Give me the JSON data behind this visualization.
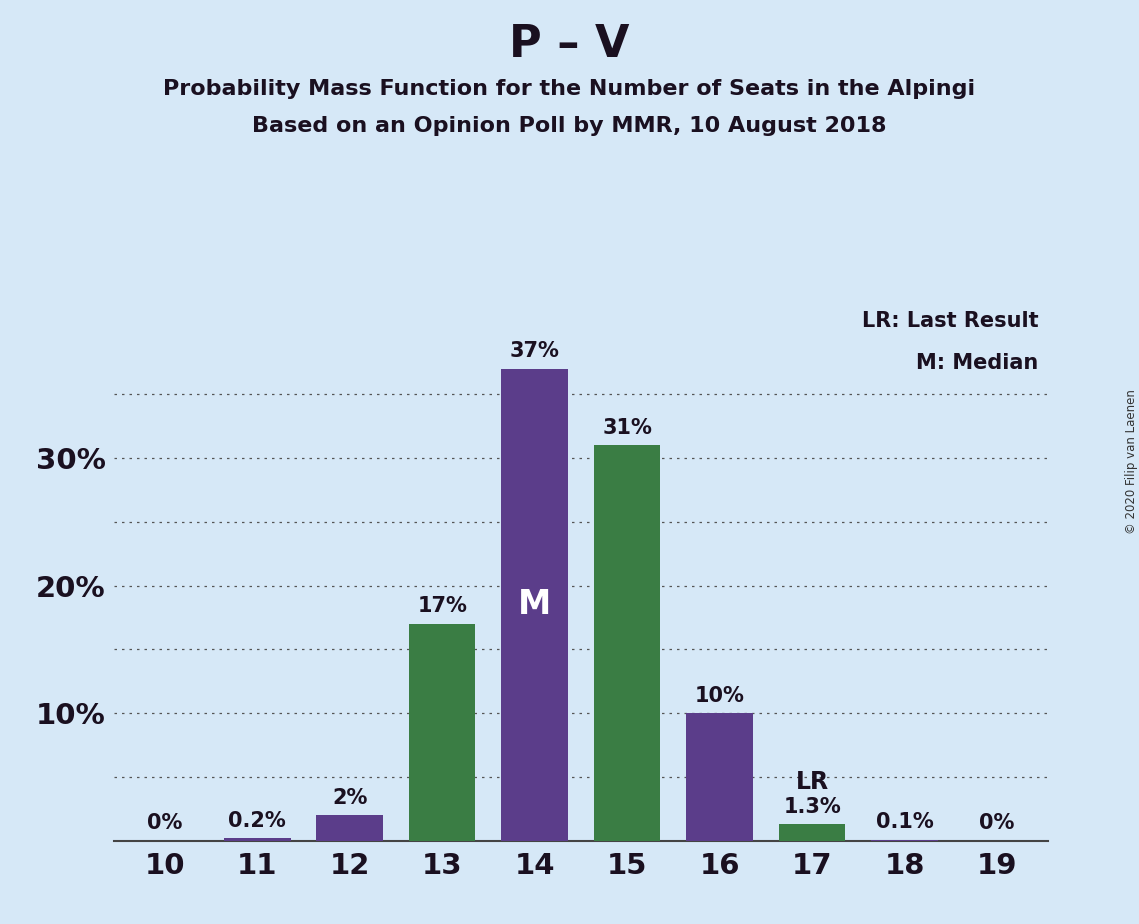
{
  "title_main": "P – V",
  "title_sub1": "Probability Mass Function for the Number of Seats in the Alpingi",
  "title_sub2": "Based on an Opinion Poll by MMR, 10 August 2018",
  "copyright": "© 2020 Filip van Laenen",
  "seats": [
    10,
    11,
    12,
    13,
    14,
    15,
    16,
    17,
    18,
    19
  ],
  "values": [
    0.0,
    0.2,
    2.0,
    17.0,
    37.0,
    31.0,
    10.0,
    1.3,
    0.1,
    0.0
  ],
  "colors": [
    "#5b3d8a",
    "#5b3d8a",
    "#5b3d8a",
    "#3a7d44",
    "#5b3d8a",
    "#3a7d44",
    "#5b3d8a",
    "#3a7d44",
    "#5b3d8a",
    "#5b3d8a"
  ],
  "labels": [
    "0%",
    "0.2%",
    "2%",
    "17%",
    "37%",
    "31%",
    "10%",
    "1.3%",
    "0.1%",
    "0%"
  ],
  "median_seat": 14,
  "lr_seat": 17,
  "background_color": "#d6e8f7",
  "bar_purple": "#5b3d8a",
  "bar_green": "#3a7d44",
  "ylim": [
    0,
    42
  ],
  "grid_y": [
    5,
    10,
    15,
    20,
    25,
    30,
    35
  ],
  "legend_lr": "LR: Last Result",
  "legend_m": "M: Median"
}
